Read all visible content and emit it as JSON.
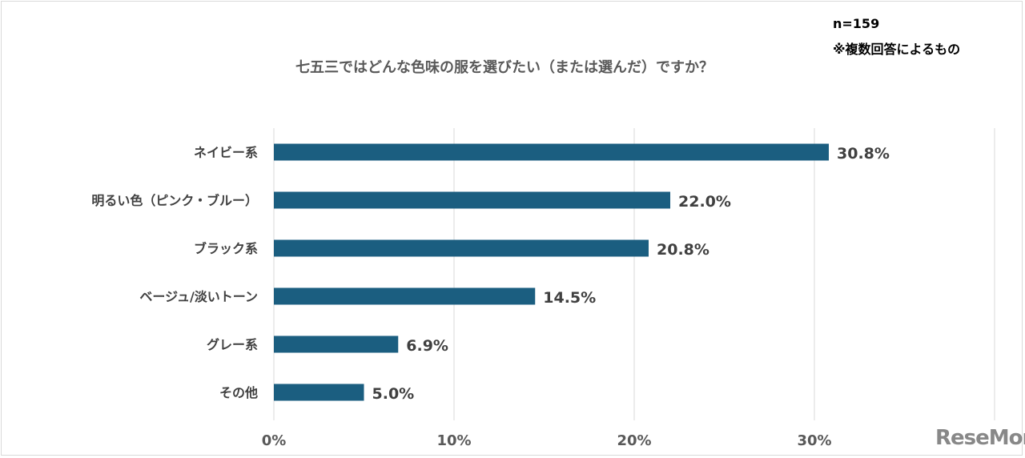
{
  "chart_data": {
    "type": "bar",
    "orientation": "horizontal",
    "title": "七五三ではどんな色味の服を選びたい（または選んだ）ですか？",
    "annotations": [
      "n=159",
      "※複数回答によるもの"
    ],
    "categories": [
      "ネイビー系",
      "明るい色（ピンク・ブルー）",
      "ブラック系",
      "ベージュ/淡いトーン",
      "グレー系",
      "その他"
    ],
    "values": [
      30.8,
      22.0,
      20.8,
      14.5,
      6.9,
      5.0
    ],
    "data_labels": [
      "30.8%",
      "22.0%",
      "20.8%",
      "14.5%",
      "6.9%",
      "5.0%"
    ],
    "x_ticks": [
      "0%",
      "10%",
      "20%",
      "30%"
    ],
    "xlim": [
      0,
      40
    ],
    "grid": true,
    "bar_color": "#1b5e80",
    "watermark": "ReseMom"
  }
}
